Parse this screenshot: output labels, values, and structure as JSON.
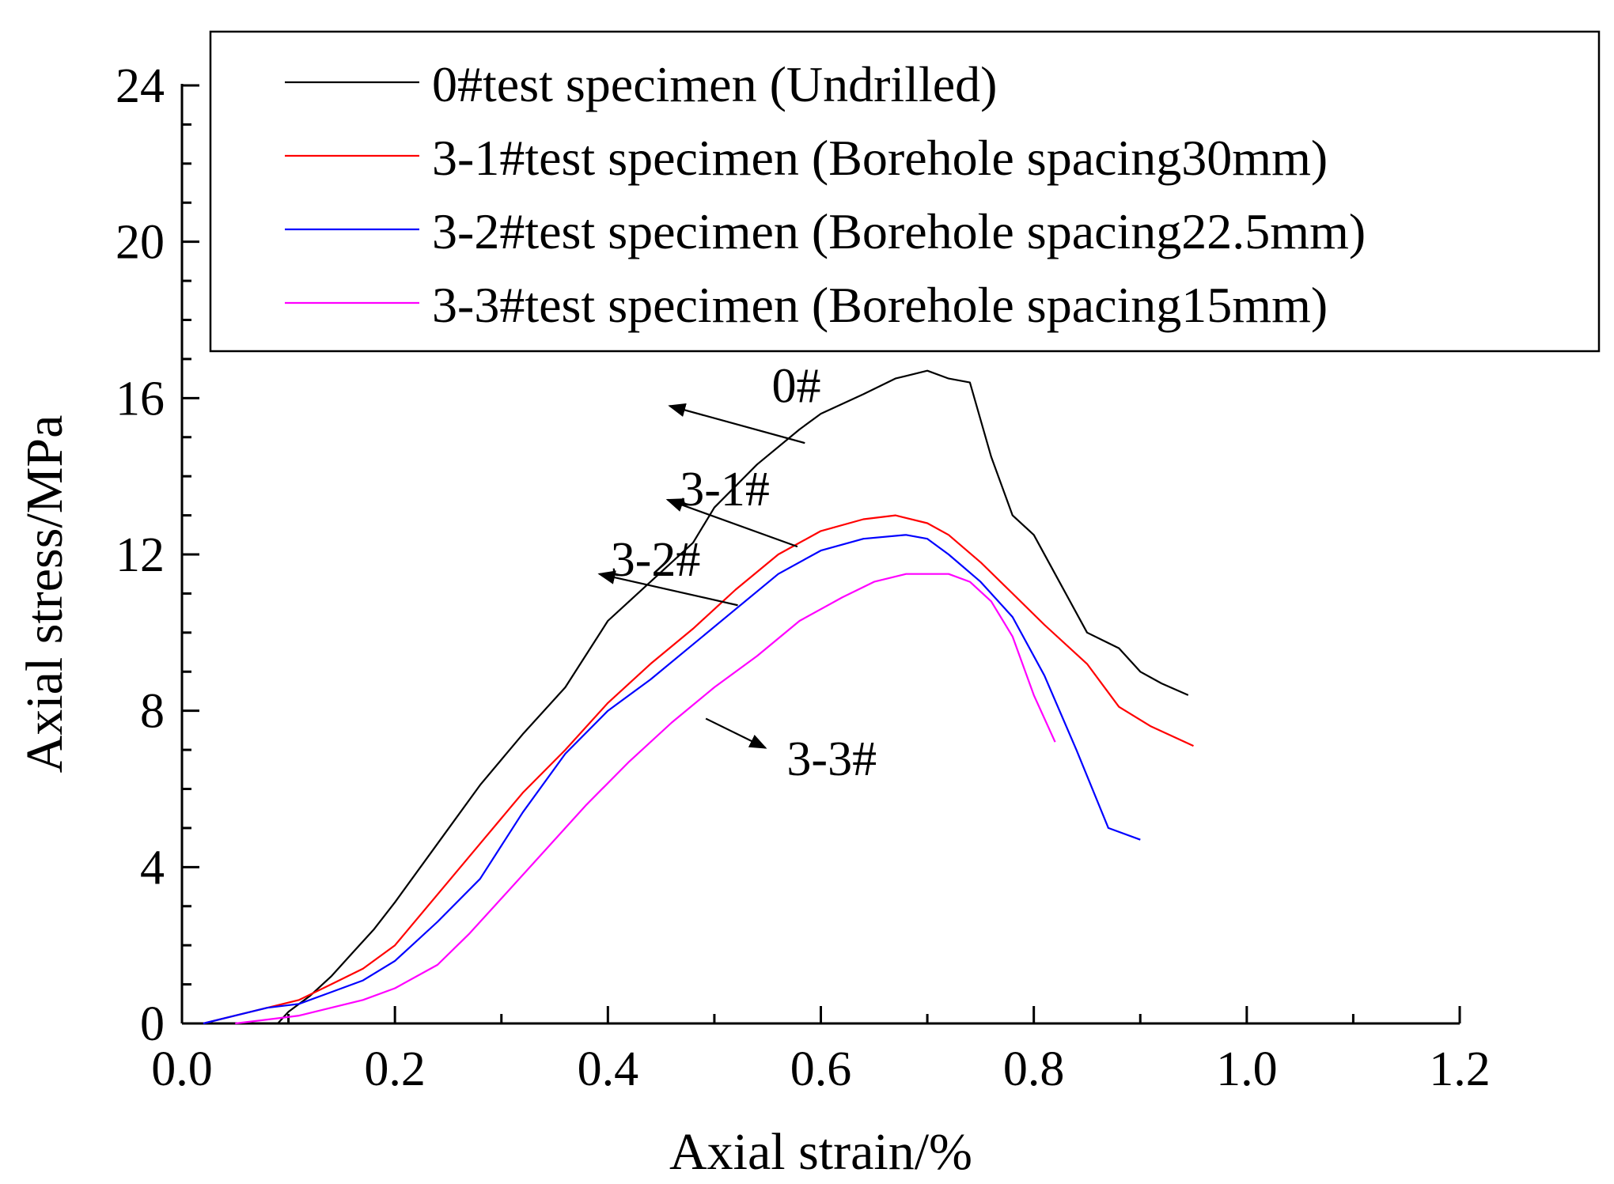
{
  "chart_data": {
    "type": "line",
    "title": "",
    "xlabel": "Axial strain/%",
    "ylabel": "Axial stress/MPa",
    "xlim": [
      0.0,
      1.2
    ],
    "ylim": [
      0,
      24
    ],
    "xticks": [
      0.0,
      0.2,
      0.4,
      0.6,
      0.8,
      1.0,
      1.2
    ],
    "xtick_labels": [
      "0.0",
      "0.2",
      "0.4",
      "0.6",
      "0.8",
      "1.0",
      "1.2"
    ],
    "yticks": [
      0,
      4,
      8,
      12,
      16,
      20,
      24
    ],
    "ytick_labels": [
      "0",
      "4",
      "8",
      "12",
      "16",
      "20",
      "24"
    ],
    "legend_position": "top-right",
    "series": [
      {
        "key": "s0",
        "name": "0#test specimen (Undrilled)",
        "color": "#000000",
        "x": [
          0.09,
          0.1,
          0.12,
          0.14,
          0.16,
          0.18,
          0.2,
          0.24,
          0.28,
          0.32,
          0.36,
          0.4,
          0.44,
          0.48,
          0.5,
          0.54,
          0.58,
          0.6,
          0.64,
          0.67,
          0.7,
          0.72,
          0.74,
          0.76,
          0.78,
          0.8,
          0.82,
          0.85,
          0.88,
          0.9,
          0.92,
          0.945
        ],
        "y": [
          0.0,
          0.3,
          0.7,
          1.2,
          1.8,
          2.4,
          3.1,
          4.6,
          6.1,
          7.4,
          8.6,
          10.3,
          11.3,
          12.3,
          13.2,
          14.3,
          15.2,
          15.6,
          16.1,
          16.5,
          16.7,
          16.5,
          16.4,
          14.5,
          13.0,
          12.5,
          11.5,
          10.0,
          9.6,
          9.0,
          8.7,
          8.4
        ]
      },
      {
        "key": "s1",
        "name": "3-1#test specimen (Borehole spacing30mm)",
        "color": "#ff0000",
        "x": [
          0.02,
          0.05,
          0.08,
          0.11,
          0.14,
          0.17,
          0.2,
          0.24,
          0.28,
          0.32,
          0.36,
          0.4,
          0.44,
          0.48,
          0.52,
          0.56,
          0.6,
          0.64,
          0.67,
          0.7,
          0.72,
          0.75,
          0.78,
          0.81,
          0.85,
          0.88,
          0.91,
          0.95
        ],
        "y": [
          0.0,
          0.2,
          0.4,
          0.6,
          1.0,
          1.4,
          2.0,
          3.3,
          4.6,
          5.9,
          7.0,
          8.2,
          9.2,
          10.1,
          11.1,
          12.0,
          12.6,
          12.9,
          13.0,
          12.8,
          12.5,
          11.8,
          11.0,
          10.2,
          9.2,
          8.1,
          7.6,
          7.1
        ]
      },
      {
        "key": "s2",
        "name": "3-2#test specimen (Borehole spacing22.5mm)",
        "color": "#0000ff",
        "x": [
          0.02,
          0.05,
          0.08,
          0.11,
          0.14,
          0.17,
          0.2,
          0.24,
          0.28,
          0.32,
          0.36,
          0.4,
          0.44,
          0.48,
          0.52,
          0.56,
          0.6,
          0.64,
          0.68,
          0.7,
          0.72,
          0.75,
          0.78,
          0.81,
          0.84,
          0.87,
          0.9
        ],
        "y": [
          0.0,
          0.2,
          0.4,
          0.5,
          0.8,
          1.1,
          1.6,
          2.6,
          3.7,
          5.4,
          6.9,
          8.0,
          8.8,
          9.7,
          10.6,
          11.5,
          12.1,
          12.4,
          12.5,
          12.4,
          12.0,
          11.3,
          10.4,
          8.9,
          7.0,
          5.0,
          4.7
        ]
      },
      {
        "key": "s3",
        "name": "3-3#test specimen (Borehole spacing15mm)",
        "color": "#ff00ff",
        "x": [
          0.05,
          0.08,
          0.11,
          0.14,
          0.17,
          0.2,
          0.24,
          0.27,
          0.3,
          0.34,
          0.38,
          0.42,
          0.46,
          0.5,
          0.54,
          0.58,
          0.62,
          0.65,
          0.68,
          0.7,
          0.72,
          0.74,
          0.76,
          0.78,
          0.8,
          0.82
        ],
        "y": [
          0.0,
          0.1,
          0.2,
          0.4,
          0.6,
          0.9,
          1.5,
          2.3,
          3.2,
          4.4,
          5.6,
          6.7,
          7.7,
          8.6,
          9.4,
          10.3,
          10.9,
          11.3,
          11.5,
          11.5,
          11.5,
          11.3,
          10.8,
          9.9,
          8.4,
          7.2
        ]
      }
    ],
    "annotations": [
      {
        "key": "a0",
        "text": "0#",
        "x": 0.6,
        "y": 15.9,
        "arrow_from": [
          0.585,
          14.85
        ],
        "arrow_to": [
          0.458,
          15.8
        ],
        "anchor": "end"
      },
      {
        "key": "a1",
        "text": "3-1#",
        "x": 0.552,
        "y": 13.25,
        "arrow_from": [
          0.578,
          12.2
        ],
        "arrow_to": [
          0.456,
          13.4
        ],
        "anchor": "end"
      },
      {
        "key": "a2",
        "text": "3-2#",
        "x": 0.487,
        "y": 11.45,
        "arrow_from": [
          0.522,
          10.7
        ],
        "arrow_to": [
          0.392,
          11.5
        ],
        "anchor": "end"
      },
      {
        "key": "a3",
        "text": "3-3#",
        "x": 0.568,
        "y": 6.35,
        "arrow_from": [
          0.492,
          7.8
        ],
        "arrow_to": [
          0.548,
          7.05
        ],
        "anchor": "start"
      }
    ]
  }
}
